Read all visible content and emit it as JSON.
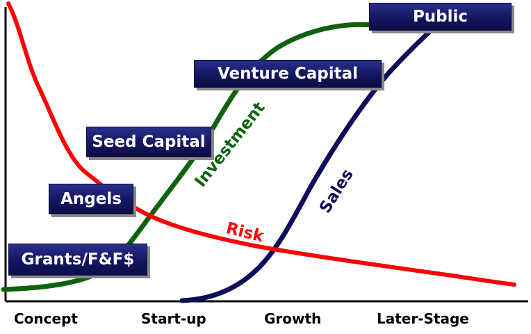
{
  "stages": {
    "concept": "Concept",
    "startup": "Start-up",
    "growth": "Growth",
    "later_stage": "Later-Stage"
  },
  "funding_boxes": {
    "grants": "Grants/F&F$",
    "angels": "Angels",
    "seed_capital": "Seed Capital",
    "venture_capital": "Venture Capital",
    "public": "Public"
  },
  "curves": {
    "investment": {
      "label": "Investment",
      "color": "#0e620e"
    },
    "sales": {
      "label": "Sales",
      "color": "#0d0d5a"
    },
    "risk": {
      "label": "Risk",
      "color": "#ff0000"
    }
  },
  "colors": {
    "box_fill": "#141660",
    "box_text": "#ffffff",
    "axis": "#000000"
  }
}
